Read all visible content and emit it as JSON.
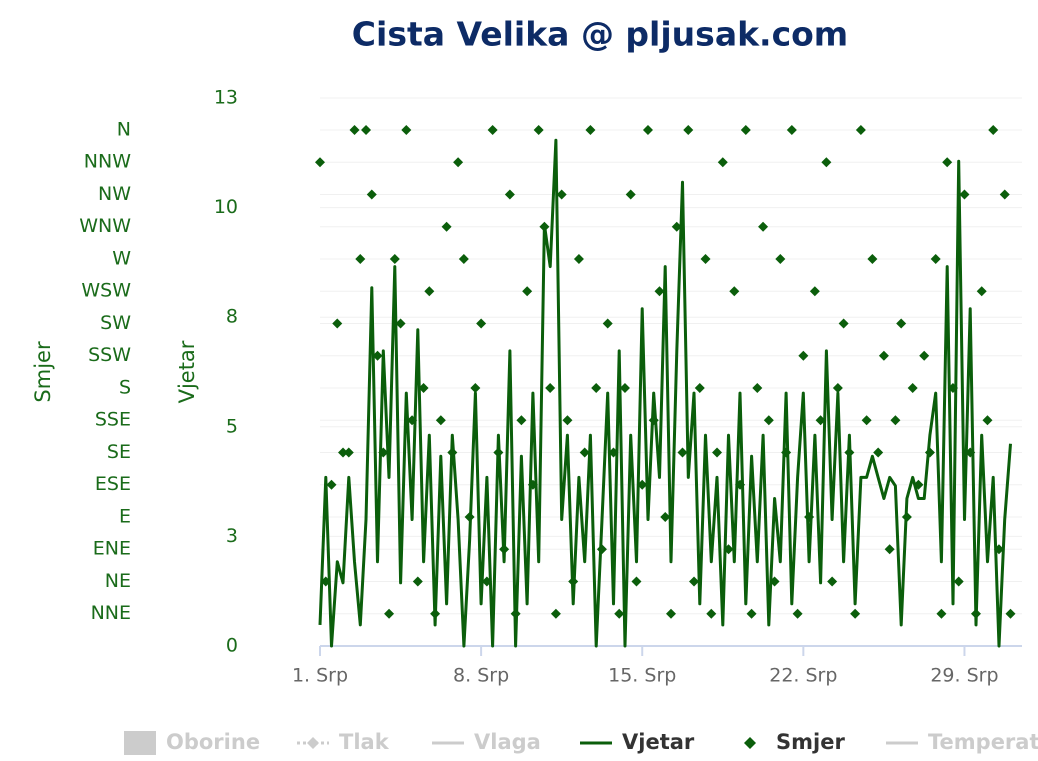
{
  "chart_data": {
    "type": "line",
    "title": "Cista Velika @ pljusak.com",
    "y_label": "Vjetar",
    "y2_label": "Smjer",
    "xlim": [
      1,
      31.5
    ],
    "xticks": [
      {
        "value": 1,
        "label": "1. Srp"
      },
      {
        "value": 8,
        "label": "8. Srp"
      },
      {
        "value": 15,
        "label": "15. Srp"
      },
      {
        "value": 22,
        "label": "22. Srp"
      },
      {
        "value": 29,
        "label": "29. Srp"
      }
    ],
    "ylim": [
      0,
      13
    ],
    "yticks": [
      0,
      {
        "value": 2.6,
        "label": "3"
      },
      {
        "value": 5.2,
        "label": "5"
      },
      {
        "value": 7.8,
        "label": "8"
      },
      {
        "value": 10.4,
        "label": "10"
      },
      13
    ],
    "y2lim": [
      0,
      382.3
    ],
    "y2ticks": [
      {
        "value": 22.5,
        "label": "NNE"
      },
      {
        "value": 45,
        "label": "NE"
      },
      {
        "value": 67.5,
        "label": "ENE"
      },
      {
        "value": 90,
        "label": "E"
      },
      {
        "value": 112.5,
        "label": "ESE"
      },
      {
        "value": 135,
        "label": "SE"
      },
      {
        "value": 157.5,
        "label": "SSE"
      },
      {
        "value": 180,
        "label": "S"
      },
      {
        "value": 202.5,
        "label": "SSW"
      },
      {
        "value": 225,
        "label": "SW"
      },
      {
        "value": 247.5,
        "label": "WSW"
      },
      {
        "value": 270,
        "label": "W"
      },
      {
        "value": 292.5,
        "label": "WNW"
      },
      {
        "value": 315,
        "label": "NW"
      },
      {
        "value": 337.5,
        "label": "NNW"
      },
      {
        "value": 360,
        "label": "N"
      }
    ],
    "grid": true,
    "x": [
      1,
      1.25,
      1.5,
      1.75,
      2,
      2.25,
      2.5,
      2.75,
      3,
      3.25,
      3.5,
      3.75,
      4,
      4.25,
      4.5,
      4.75,
      5,
      5.25,
      5.5,
      5.75,
      6,
      6.25,
      6.5,
      6.75,
      7,
      7.25,
      7.5,
      7.75,
      8,
      8.25,
      8.5,
      8.75,
      9,
      9.25,
      9.5,
      9.75,
      10,
      10.25,
      10.5,
      10.75,
      11,
      11.25,
      11.5,
      11.75,
      12,
      12.25,
      12.5,
      12.75,
      13,
      13.25,
      13.5,
      13.75,
      14,
      14.25,
      14.5,
      14.75,
      15,
      15.25,
      15.5,
      15.75,
      16,
      16.25,
      16.5,
      16.75,
      17,
      17.25,
      17.5,
      17.75,
      18,
      18.25,
      18.5,
      18.75,
      19,
      19.25,
      19.5,
      19.75,
      20,
      20.25,
      20.5,
      20.75,
      21,
      21.25,
      21.5,
      21.75,
      22,
      22.25,
      22.5,
      22.75,
      23,
      23.25,
      23.5,
      23.75,
      24,
      24.25,
      24.5,
      24.75,
      25,
      25.25,
      25.5,
      25.75,
      26,
      26.25,
      26.5,
      26.75,
      27,
      27.25,
      27.5,
      27.75,
      28,
      28.25,
      28.5,
      28.75,
      29,
      29.25,
      29.5,
      29.75,
      30,
      30.25,
      30.5,
      30.75,
      31
    ],
    "series": [
      {
        "name": "Oborine",
        "symbol": "rect",
        "visible": false,
        "color": "#cccccc"
      },
      {
        "name": "Tlak",
        "symbol": "dash-diamond",
        "visible": false,
        "color": "#cccccc"
      },
      {
        "name": "Vlaga",
        "symbol": "line",
        "visible": false,
        "color": "#cccccc"
      },
      {
        "name": "Vjetar",
        "symbol": "line",
        "visible": true,
        "color": "#0b5e0b",
        "kind": "line",
        "values": [
          0.5,
          4,
          0,
          2,
          1.5,
          4,
          2,
          0.5,
          3,
          8.5,
          2,
          7,
          4,
          9,
          1.5,
          6,
          3,
          7.5,
          2,
          5,
          0.5,
          4.5,
          1,
          5,
          3,
          0,
          2.5,
          6,
          1,
          4,
          0,
          5,
          2,
          7,
          0,
          4.5,
          1,
          6,
          2,
          10,
          9,
          12,
          3,
          5,
          1,
          4,
          2,
          5,
          0,
          3,
          6,
          1,
          7,
          0,
          5,
          2,
          8,
          3,
          6,
          4,
          9,
          2,
          7,
          11,
          4,
          6,
          1,
          5,
          2,
          4,
          0.5,
          5,
          2,
          6,
          1,
          4.5,
          2,
          5,
          0.5,
          3.5,
          2,
          6,
          1,
          4,
          6,
          2,
          5,
          1.5,
          7,
          3,
          6,
          2,
          5,
          1,
          4,
          4,
          4.5,
          4,
          3.5,
          4,
          3.8,
          0.5,
          3.5,
          4,
          3.5,
          3.5,
          5,
          6,
          2,
          9,
          1,
          11.5,
          3,
          8,
          0.5,
          5,
          2,
          4,
          0,
          3,
          4.8
        ]
      },
      {
        "name": "Smjer",
        "symbol": "diamond",
        "visible": true,
        "color": "#0b5e0b",
        "kind": "scatter",
        "axis": "y2",
        "values": [
          337.5,
          45,
          112.5,
          225,
          135,
          135,
          360,
          270,
          360,
          315,
          202.5,
          135,
          22.5,
          270,
          225,
          360,
          157.5,
          45,
          180,
          247.5,
          22.5,
          157.5,
          292.5,
          135,
          337.5,
          270,
          90,
          180,
          225,
          45,
          360,
          135,
          67.5,
          315,
          22.5,
          157.5,
          247.5,
          112.5,
          360,
          292.5,
          180,
          22.5,
          315,
          157.5,
          45,
          270,
          135,
          360,
          180,
          67.5,
          225,
          135,
          22.5,
          180,
          315,
          45,
          112.5,
          360,
          157.5,
          247.5,
          90,
          22.5,
          292.5,
          135,
          360,
          45,
          180,
          270,
          22.5,
          135,
          337.5,
          67.5,
          247.5,
          112.5,
          360,
          22.5,
          180,
          292.5,
          157.5,
          45,
          270,
          135,
          360,
          22.5,
          202.5,
          90,
          247.5,
          157.5,
          337.5,
          45,
          180,
          225,
          135,
          22.5,
          360,
          157.5,
          270,
          135,
          202.5,
          67.5,
          157.5,
          225,
          90,
          180,
          112.5,
          202.5,
          135,
          270,
          22.5,
          337.5,
          180,
          45,
          315,
          135,
          22.5,
          247.5,
          157.5,
          360,
          67.5,
          315,
          22.5
        ]
      },
      {
        "name": "Temperat",
        "symbol": "line",
        "visible": false,
        "color": "#cccccc"
      }
    ]
  }
}
